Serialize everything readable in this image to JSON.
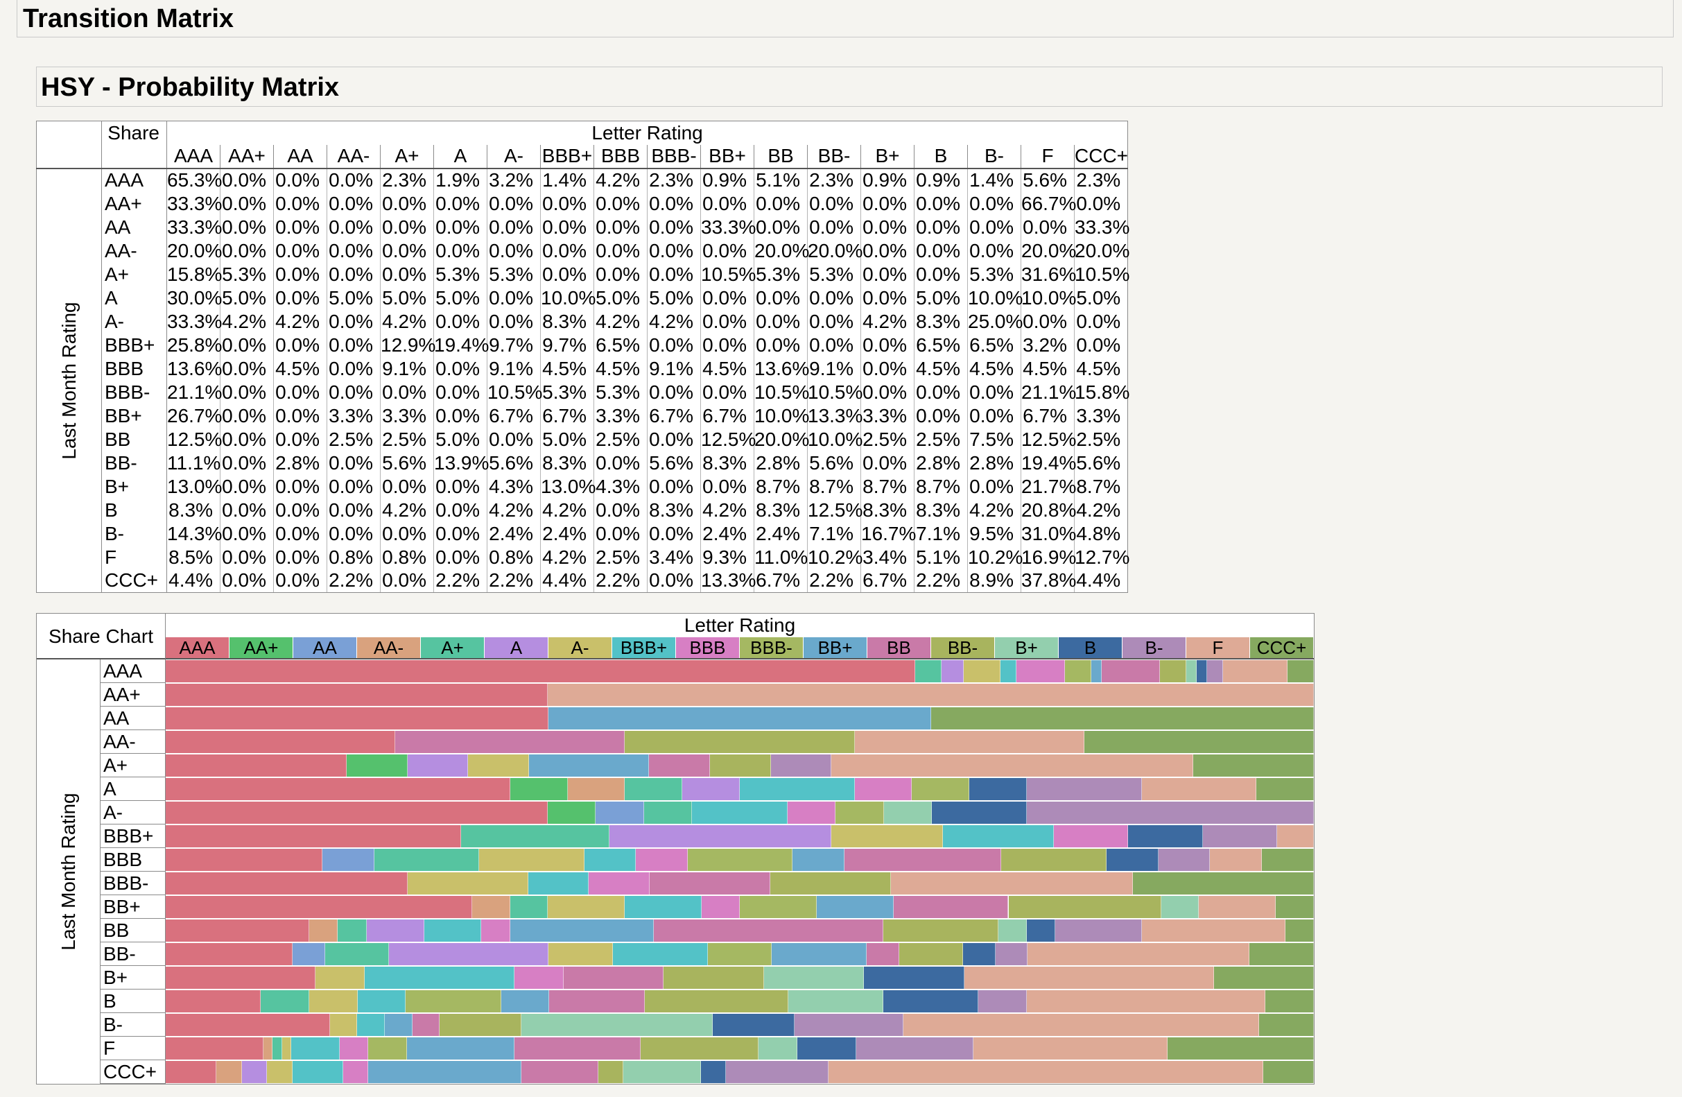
{
  "app_title": "Transition Matrix",
  "report_title": "HSY - Probability Matrix",
  "matrix": {
    "share_label": "Share",
    "group_label": "Letter Rating",
    "row_axis_label": "Last Month Rating",
    "columns": [
      "AAA",
      "AA+",
      "AA",
      "AA-",
      "A+",
      "A",
      "A-",
      "BBB+",
      "BBB",
      "BBB-",
      "BB+",
      "BB",
      "BB-",
      "B+",
      "B",
      "B-",
      "F",
      "CCC+"
    ],
    "rows": [
      {
        "label": "AAA",
        "values": [
          "65.3%",
          "0.0%",
          "0.0%",
          "0.0%",
          "2.3%",
          "1.9%",
          "3.2%",
          "1.4%",
          "4.2%",
          "2.3%",
          "0.9%",
          "5.1%",
          "2.3%",
          "0.9%",
          "0.9%",
          "1.4%",
          "5.6%",
          "2.3%"
        ]
      },
      {
        "label": "AA+",
        "values": [
          "33.3%",
          "0.0%",
          "0.0%",
          "0.0%",
          "0.0%",
          "0.0%",
          "0.0%",
          "0.0%",
          "0.0%",
          "0.0%",
          "0.0%",
          "0.0%",
          "0.0%",
          "0.0%",
          "0.0%",
          "0.0%",
          "66.7%",
          "0.0%"
        ]
      },
      {
        "label": "AA",
        "values": [
          "33.3%",
          "0.0%",
          "0.0%",
          "0.0%",
          "0.0%",
          "0.0%",
          "0.0%",
          "0.0%",
          "0.0%",
          "0.0%",
          "33.3%",
          "0.0%",
          "0.0%",
          "0.0%",
          "0.0%",
          "0.0%",
          "0.0%",
          "33.3%"
        ]
      },
      {
        "label": "AA-",
        "values": [
          "20.0%",
          "0.0%",
          "0.0%",
          "0.0%",
          "0.0%",
          "0.0%",
          "0.0%",
          "0.0%",
          "0.0%",
          "0.0%",
          "0.0%",
          "20.0%",
          "20.0%",
          "0.0%",
          "0.0%",
          "0.0%",
          "20.0%",
          "20.0%"
        ]
      },
      {
        "label": "A+",
        "values": [
          "15.8%",
          "5.3%",
          "0.0%",
          "0.0%",
          "0.0%",
          "5.3%",
          "5.3%",
          "0.0%",
          "0.0%",
          "0.0%",
          "10.5%",
          "5.3%",
          "5.3%",
          "0.0%",
          "0.0%",
          "5.3%",
          "31.6%",
          "10.5%"
        ]
      },
      {
        "label": "A",
        "values": [
          "30.0%",
          "5.0%",
          "0.0%",
          "5.0%",
          "5.0%",
          "5.0%",
          "0.0%",
          "10.0%",
          "5.0%",
          "5.0%",
          "0.0%",
          "0.0%",
          "0.0%",
          "0.0%",
          "5.0%",
          "10.0%",
          "10.0%",
          "5.0%"
        ]
      },
      {
        "label": "A-",
        "values": [
          "33.3%",
          "4.2%",
          "4.2%",
          "0.0%",
          "4.2%",
          "0.0%",
          "0.0%",
          "8.3%",
          "4.2%",
          "4.2%",
          "0.0%",
          "0.0%",
          "0.0%",
          "4.2%",
          "8.3%",
          "25.0%",
          "0.0%",
          "0.0%"
        ]
      },
      {
        "label": "BBB+",
        "values": [
          "25.8%",
          "0.0%",
          "0.0%",
          "0.0%",
          "12.9%",
          "19.4%",
          "9.7%",
          "9.7%",
          "6.5%",
          "0.0%",
          "0.0%",
          "0.0%",
          "0.0%",
          "0.0%",
          "6.5%",
          "6.5%",
          "3.2%",
          "0.0%"
        ]
      },
      {
        "label": "BBB",
        "values": [
          "13.6%",
          "0.0%",
          "4.5%",
          "0.0%",
          "9.1%",
          "0.0%",
          "9.1%",
          "4.5%",
          "4.5%",
          "9.1%",
          "4.5%",
          "13.6%",
          "9.1%",
          "0.0%",
          "4.5%",
          "4.5%",
          "4.5%",
          "4.5%"
        ]
      },
      {
        "label": "BBB-",
        "values": [
          "21.1%",
          "0.0%",
          "0.0%",
          "0.0%",
          "0.0%",
          "0.0%",
          "10.5%",
          "5.3%",
          "5.3%",
          "0.0%",
          "0.0%",
          "10.5%",
          "10.5%",
          "0.0%",
          "0.0%",
          "0.0%",
          "21.1%",
          "15.8%"
        ]
      },
      {
        "label": "BB+",
        "values": [
          "26.7%",
          "0.0%",
          "0.0%",
          "3.3%",
          "3.3%",
          "0.0%",
          "6.7%",
          "6.7%",
          "3.3%",
          "6.7%",
          "6.7%",
          "10.0%",
          "13.3%",
          "3.3%",
          "0.0%",
          "0.0%",
          "6.7%",
          "3.3%"
        ]
      },
      {
        "label": "BB",
        "values": [
          "12.5%",
          "0.0%",
          "0.0%",
          "2.5%",
          "2.5%",
          "5.0%",
          "0.0%",
          "5.0%",
          "2.5%",
          "0.0%",
          "12.5%",
          "20.0%",
          "10.0%",
          "2.5%",
          "2.5%",
          "7.5%",
          "12.5%",
          "2.5%"
        ]
      },
      {
        "label": "BB-",
        "values": [
          "11.1%",
          "0.0%",
          "2.8%",
          "0.0%",
          "5.6%",
          "13.9%",
          "5.6%",
          "8.3%",
          "0.0%",
          "5.6%",
          "8.3%",
          "2.8%",
          "5.6%",
          "0.0%",
          "2.8%",
          "2.8%",
          "19.4%",
          "5.6%"
        ]
      },
      {
        "label": "B+",
        "values": [
          "13.0%",
          "0.0%",
          "0.0%",
          "0.0%",
          "0.0%",
          "0.0%",
          "4.3%",
          "13.0%",
          "4.3%",
          "0.0%",
          "0.0%",
          "8.7%",
          "8.7%",
          "8.7%",
          "8.7%",
          "0.0%",
          "21.7%",
          "8.7%"
        ]
      },
      {
        "label": "B",
        "values": [
          "8.3%",
          "0.0%",
          "0.0%",
          "0.0%",
          "4.2%",
          "0.0%",
          "4.2%",
          "4.2%",
          "0.0%",
          "8.3%",
          "4.2%",
          "8.3%",
          "12.5%",
          "8.3%",
          "8.3%",
          "4.2%",
          "20.8%",
          "4.2%"
        ]
      },
      {
        "label": "B-",
        "values": [
          "14.3%",
          "0.0%",
          "0.0%",
          "0.0%",
          "0.0%",
          "0.0%",
          "2.4%",
          "2.4%",
          "0.0%",
          "0.0%",
          "2.4%",
          "2.4%",
          "7.1%",
          "16.7%",
          "7.1%",
          "9.5%",
          "31.0%",
          "4.8%"
        ]
      },
      {
        "label": "F",
        "values": [
          "8.5%",
          "0.0%",
          "0.0%",
          "0.8%",
          "0.8%",
          "0.0%",
          "0.8%",
          "4.2%",
          "2.5%",
          "3.4%",
          "9.3%",
          "11.0%",
          "10.2%",
          "3.4%",
          "5.1%",
          "10.2%",
          "16.9%",
          "12.7%"
        ]
      },
      {
        "label": "CCC+",
        "values": [
          "4.4%",
          "0.0%",
          "0.0%",
          "2.2%",
          "0.0%",
          "2.2%",
          "2.2%",
          "4.4%",
          "2.2%",
          "0.0%",
          "13.3%",
          "6.7%",
          "2.2%",
          "6.7%",
          "2.2%",
          "8.9%",
          "37.8%",
          "4.4%"
        ]
      }
    ]
  },
  "share_chart": {
    "caption": "Share Chart",
    "group_label": "Letter Rating",
    "row_axis_label": "Last Month Rating",
    "colors": {
      "AAA": "#d9717e",
      "AA+": "#55c16d",
      "AA": "#7aa0d6",
      "AA-": "#d9a27e",
      "A+": "#56c4a0",
      "A": "#b58ee0",
      "A-": "#c9c06a",
      "BBB+": "#53c2c7",
      "BBB": "#d77fc4",
      "BBB-": "#a5b862",
      "BB+": "#6aa9cc",
      "BB": "#c97aa8",
      "BB-": "#a8b45e",
      "B+": "#93cfae",
      "B": "#3c6aa0",
      "B-": "#ad8bb8",
      "F": "#deaa96",
      "CCC+": "#86a960"
    }
  }
}
